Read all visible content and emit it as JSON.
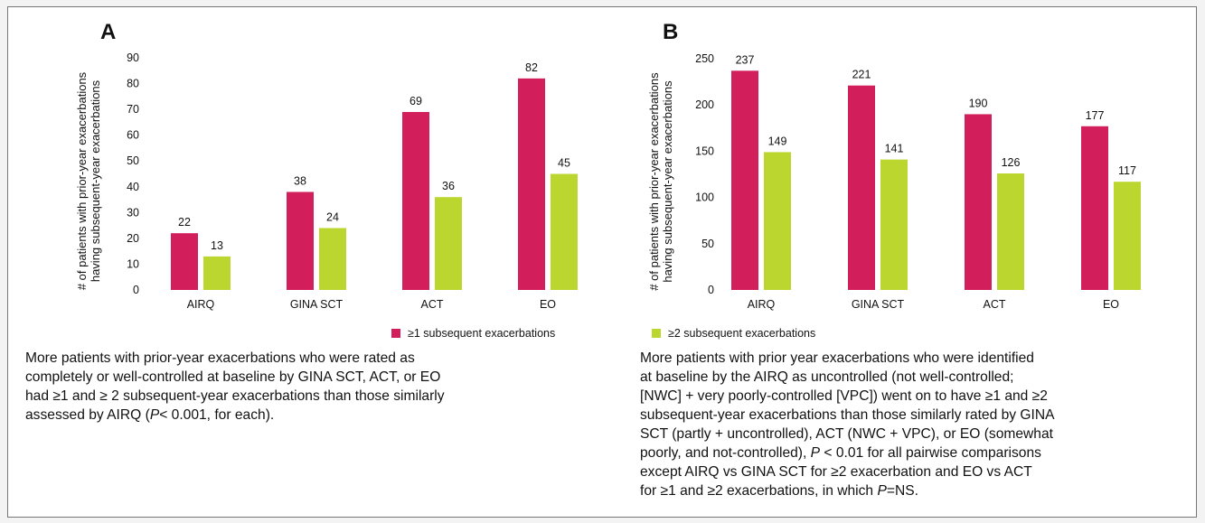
{
  "colors": {
    "series1": "#d21e5a",
    "series2": "#bcd630"
  },
  "panels": [
    {
      "letter": "A"
    },
    {
      "letter": "B"
    }
  ],
  "legend": [
    {
      "label": "≥1 subsequent exacerbations",
      "color": "#d21e5a"
    },
    {
      "label": "≥2 subsequent exacerbations",
      "color": "#bcd630"
    }
  ],
  "captions": {
    "a": [
      {
        "text": "More patients with prior-year exacerbations who were rated as"
      },
      {
        "text": "completely or well-controlled at baseline by GINA SCT, ACT, or EO"
      },
      {
        "text": "had ≥1 and ≥ 2 subsequent-year exacerbations than those similarly"
      },
      {
        "pre": "assessed by AIRQ (",
        "italic": "P",
        "post": "< 0.001, for each)."
      }
    ],
    "b": [
      {
        "text": "More patients with prior year exacerbations who were identified"
      },
      {
        "text": "at baseline by the AIRQ as uncontrolled (not well-controlled;"
      },
      {
        "text": "[NWC] + very poorly-controlled [VPC]) went on to have ≥1 and ≥2"
      },
      {
        "text": "subsequent-year exacerbations than those similarly rated by GINA"
      },
      {
        "text": "SCT (partly + uncontrolled), ACT (NWC + VPC), or EO (somewhat"
      },
      {
        "pre": "poorly, and not-controlled), ",
        "italic": "P",
        "post": " < 0.01 for all pairwise comparisons"
      },
      {
        "text": "except AIRQ vs GINA SCT for ≥2 exacerbation and EO vs ACT"
      },
      {
        "pre": "for ≥1 and ≥2 exacerbations, in which ",
        "italic": "P",
        "post": "=NS."
      }
    ]
  },
  "chart_data": [
    {
      "type": "bar",
      "panel": "A",
      "categories": [
        "AIRQ",
        "GINA SCT",
        "ACT",
        "EO"
      ],
      "ylabel": "# of patients with prior-year exacerbations having subsequent-year exacerbations",
      "ylabel_lines": [
        "# of patients with prior-year exacerbations",
        "having subsequent-year exacerbations"
      ],
      "ylim": [
        0,
        90
      ],
      "yticks": [
        0,
        10,
        20,
        30,
        40,
        50,
        60,
        70,
        80,
        90
      ],
      "series": [
        {
          "name": "≥1 subsequent exacerbations",
          "values": [
            22,
            38,
            69,
            82
          ]
        },
        {
          "name": "≥2 subsequent exacerbations",
          "values": [
            13,
            24,
            36,
            45
          ]
        }
      ],
      "grid": false
    },
    {
      "type": "bar",
      "panel": "B",
      "categories": [
        "AIRQ",
        "GINA SCT",
        "ACT",
        "EO"
      ],
      "ylabel": "# of patients with prior-year exacerbations having subsequent-year exacerbations",
      "ylabel_lines": [
        "# of patients with prior-year exacerbations",
        "having subsequent-year exacerbations"
      ],
      "ylim": [
        0,
        250
      ],
      "yticks": [
        0,
        50,
        100,
        150,
        200,
        250
      ],
      "series": [
        {
          "name": "≥1 subsequent exacerbations",
          "values": [
            237,
            221,
            190,
            177
          ]
        },
        {
          "name": "≥2 subsequent exacerbations",
          "values": [
            149,
            141,
            126,
            117
          ]
        }
      ],
      "grid": false
    }
  ]
}
